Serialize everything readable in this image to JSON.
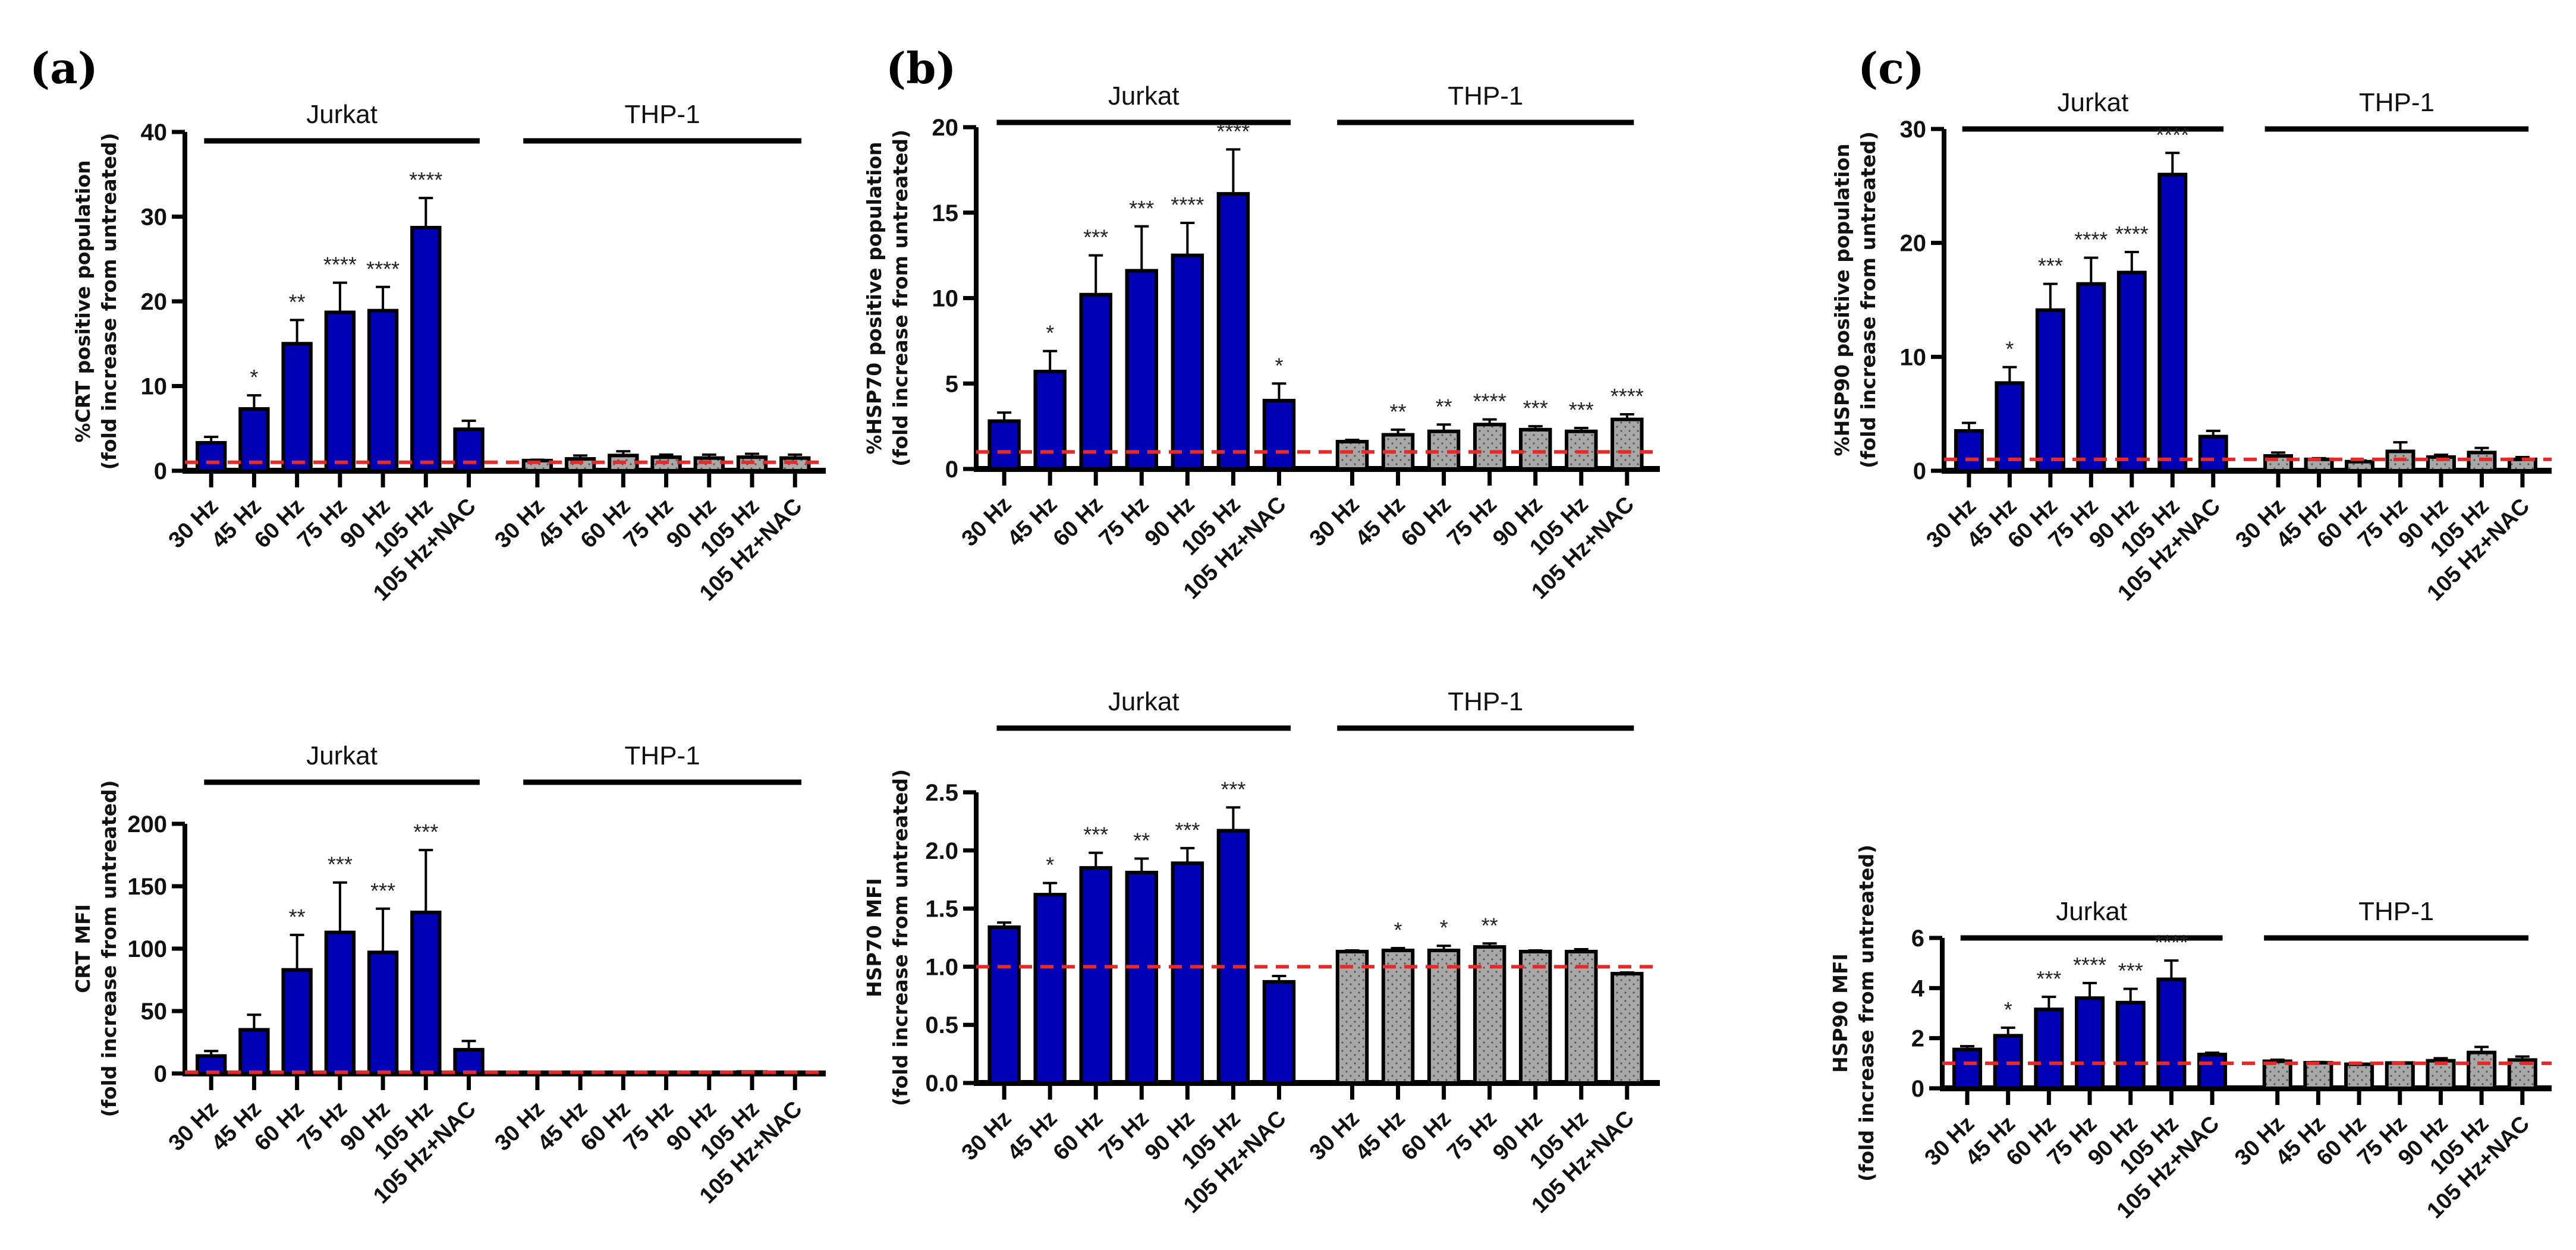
{
  "colors": {
    "jurkat": "#0000b4",
    "thp1": "#a8a8a8",
    "reference": "#e52a2a",
    "axis": "#000000"
  },
  "chart_data": [
    {
      "type": "bar",
      "panel": "(a)",
      "ylabel": [
        "%CRT positive population",
        "(fold increase from untreated)"
      ],
      "ylim": [
        0,
        40
      ],
      "yticks": [
        0,
        10,
        20,
        30,
        40
      ],
      "reference_line": 1,
      "groups": [
        "Jurkat",
        "THP-1"
      ],
      "categories": [
        "30 Hz",
        "45 Hz",
        "60 Hz",
        "75 Hz",
        "90 Hz",
        "105 Hz",
        "105 Hz+NAC"
      ],
      "series": [
        {
          "name": "Jurkat",
          "values": [
            3.3,
            7.3,
            15.0,
            18.7,
            18.9,
            28.7,
            4.9
          ],
          "errors": [
            0.7,
            1.6,
            2.8,
            3.5,
            2.8,
            3.5,
            1.0
          ],
          "stars": [
            "",
            "*",
            "**",
            "****",
            "****",
            "****",
            ""
          ]
        },
        {
          "name": "THP-1",
          "values": [
            1.2,
            1.4,
            1.8,
            1.6,
            1.5,
            1.6,
            1.5
          ],
          "errors": [
            0.1,
            0.4,
            0.5,
            0.3,
            0.4,
            0.4,
            0.4
          ],
          "stars": [
            "",
            "",
            "",
            "",
            "",
            "",
            ""
          ]
        }
      ]
    },
    {
      "type": "bar",
      "panel": "",
      "ylabel": [
        "CRT MFI",
        "(fold increase from untreated)"
      ],
      "ylim": [
        0,
        200
      ],
      "yticks": [
        0,
        50,
        100,
        150,
        200
      ],
      "reference_line": 1,
      "groups": [
        "Jurkat",
        "THP-1"
      ],
      "categories": [
        "30 Hz",
        "45 Hz",
        "60 Hz",
        "75 Hz",
        "90 Hz",
        "105 Hz",
        "105 Hz+NAC"
      ],
      "series": [
        {
          "name": "Jurkat",
          "values": [
            14,
            35,
            83,
            113,
            97,
            129,
            19
          ],
          "errors": [
            4,
            12,
            28,
            40,
            35,
            50,
            7
          ],
          "stars": [
            "",
            "",
            "**",
            "***",
            "***",
            "***",
            ""
          ]
        },
        {
          "name": "THP-1",
          "values": [
            1,
            1,
            1,
            1,
            1,
            1.2,
            1
          ],
          "errors": [
            0.1,
            0.1,
            0.1,
            0.1,
            0.1,
            0.2,
            0.1
          ],
          "stars": [
            "",
            "",
            "",
            "",
            "",
            "",
            ""
          ]
        }
      ]
    },
    {
      "type": "bar",
      "panel": "(b)",
      "ylabel": [
        "%HSP70 positive population",
        "(fold increase from untreated)"
      ],
      "ylim": [
        0,
        20
      ],
      "yticks": [
        0,
        5,
        10,
        15,
        20
      ],
      "reference_line": 1,
      "groups": [
        "Jurkat",
        "THP-1"
      ],
      "categories": [
        "30 Hz",
        "45 Hz",
        "60 Hz",
        "75 Hz",
        "90 Hz",
        "105 Hz",
        "105 Hz+NAC"
      ],
      "series": [
        {
          "name": "Jurkat",
          "values": [
            2.8,
            5.7,
            10.2,
            11.6,
            12.5,
            16.1,
            4.0
          ],
          "errors": [
            0.5,
            1.2,
            2.3,
            2.6,
            1.9,
            2.6,
            1.0
          ],
          "stars": [
            "",
            "*",
            "***",
            "***",
            "****",
            "****",
            "*"
          ]
        },
        {
          "name": "THP-1",
          "values": [
            1.6,
            2.0,
            2.2,
            2.6,
            2.3,
            2.2,
            2.9
          ],
          "errors": [
            0.1,
            0.3,
            0.4,
            0.3,
            0.2,
            0.2,
            0.3
          ],
          "stars": [
            "",
            "**",
            "**",
            "****",
            "***",
            "***",
            "****"
          ]
        }
      ]
    },
    {
      "type": "bar",
      "panel": "",
      "ylabel": [
        "HSP70 MFI",
        "(fold increase from untreated)"
      ],
      "ylim": [
        0,
        2.5
      ],
      "yticks": [
        "0.0",
        "0.5",
        "1.0",
        "1.5",
        "2.0",
        "2.5"
      ],
      "reference_line": 1,
      "groups": [
        "Jurkat",
        "THP-1"
      ],
      "categories": [
        "30 Hz",
        "45 Hz",
        "60 Hz",
        "75 Hz",
        "90 Hz",
        "105 Hz",
        "105 Hz+NAC"
      ],
      "series": [
        {
          "name": "Jurkat",
          "values": [
            1.34,
            1.62,
            1.85,
            1.81,
            1.89,
            2.17,
            0.87
          ],
          "errors": [
            0.04,
            0.1,
            0.13,
            0.12,
            0.13,
            0.2,
            0.05
          ],
          "stars": [
            "",
            "*",
            "***",
            "**",
            "***",
            "***",
            ""
          ]
        },
        {
          "name": "THP-1",
          "values": [
            1.13,
            1.14,
            1.14,
            1.17,
            1.13,
            1.13,
            0.94
          ],
          "errors": [
            0.01,
            0.02,
            0.04,
            0.03,
            0.01,
            0.02,
            0.01
          ],
          "stars": [
            "",
            "*",
            "*",
            "**",
            "",
            "",
            ""
          ]
        }
      ]
    },
    {
      "type": "bar",
      "panel": "(c)",
      "ylabel": [
        "%HSP90 positive population",
        "(fold increase from untreated)"
      ],
      "ylim": [
        0,
        30
      ],
      "yticks": [
        0,
        10,
        20,
        30
      ],
      "reference_line": 1,
      "groups": [
        "Jurkat",
        "THP-1"
      ],
      "categories": [
        "30 Hz",
        "45 Hz",
        "60 Hz",
        "75 Hz",
        "90 Hz",
        "105 Hz",
        "105 Hz+NAC"
      ],
      "series": [
        {
          "name": "Jurkat",
          "values": [
            3.5,
            7.7,
            14.1,
            16.4,
            17.4,
            26.0,
            3.0
          ],
          "errors": [
            0.7,
            1.4,
            2.3,
            2.3,
            1.8,
            1.9,
            0.5
          ],
          "stars": [
            "",
            "*",
            "***",
            "****",
            "****",
            "****",
            ""
          ]
        },
        {
          "name": "THP-1",
          "values": [
            1.3,
            1.0,
            0.8,
            1.7,
            1.2,
            1.6,
            1.0
          ],
          "errors": [
            0.3,
            0.1,
            0.1,
            0.8,
            0.2,
            0.4,
            0.2
          ],
          "stars": [
            "",
            "",
            "",
            "",
            "",
            "",
            ""
          ]
        }
      ]
    },
    {
      "type": "bar",
      "panel": "",
      "ylabel": [
        "HSP90 MFI",
        "(fold increase from untreated)"
      ],
      "ylim": [
        0,
        6
      ],
      "yticks": [
        0,
        2,
        4,
        6
      ],
      "reference_line": 1,
      "groups": [
        "Jurkat",
        "THP-1"
      ],
      "categories": [
        "30 Hz",
        "45 Hz",
        "60 Hz",
        "75 Hz",
        "90 Hz",
        "105 Hz",
        "105 Hz+NAC"
      ],
      "series": [
        {
          "name": "Jurkat",
          "values": [
            1.55,
            2.1,
            3.15,
            3.6,
            3.42,
            4.35,
            1.35
          ],
          "errors": [
            0.13,
            0.32,
            0.5,
            0.6,
            0.55,
            0.75,
            0.07
          ],
          "stars": [
            "",
            "*",
            "***",
            "****",
            "***",
            "****",
            ""
          ]
        },
        {
          "name": "THP-1",
          "values": [
            1.08,
            1.02,
            0.96,
            1.01,
            1.1,
            1.43,
            1.13
          ],
          "errors": [
            0.06,
            0.03,
            0.02,
            0.02,
            0.1,
            0.22,
            0.14
          ],
          "stars": [
            "",
            "",
            "",
            "",
            "",
            "",
            ""
          ]
        }
      ]
    }
  ]
}
